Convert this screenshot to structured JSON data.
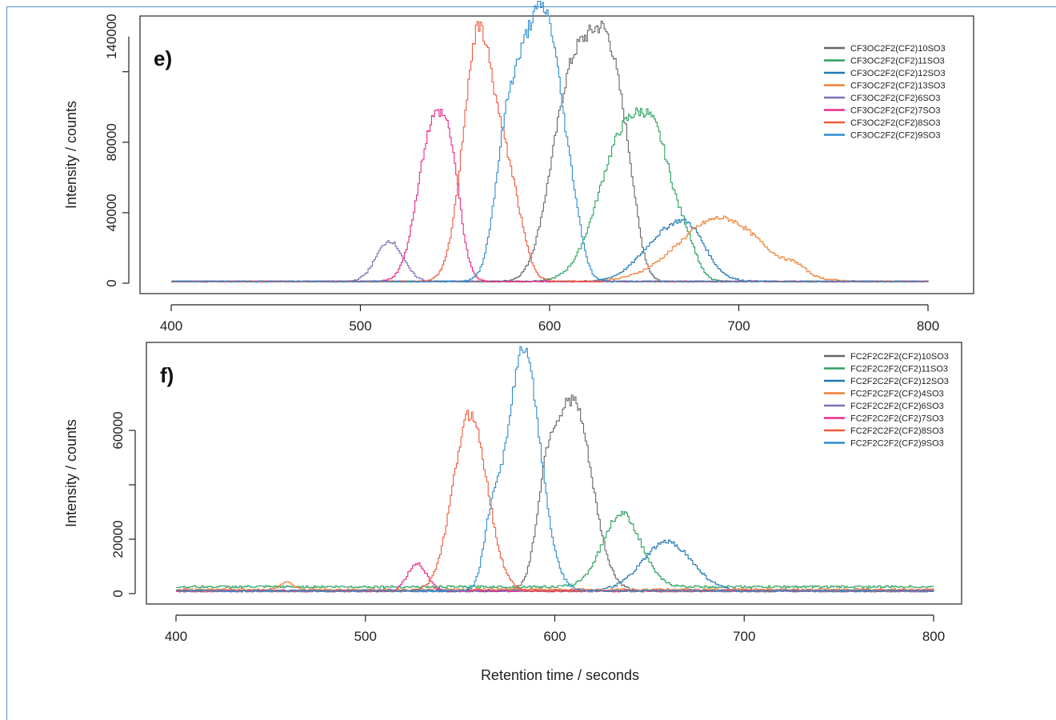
{
  "figure": {
    "xlabel": "Retention time / seconds"
  },
  "chart_data": [
    {
      "type": "line",
      "panel": "e)",
      "ylabel": "Intensity / counts",
      "xlim": [
        400,
        800
      ],
      "ylim": [
        0,
        150000
      ],
      "xticks": [
        400,
        500,
        600,
        700,
        800
      ],
      "yticks": [
        0,
        40000,
        80000,
        140000
      ],
      "grid": false,
      "legend_position": "top-right",
      "legend_order": [
        0,
        1,
        2,
        3,
        4,
        5,
        6,
        7
      ],
      "series": [
        {
          "name": "CF3OC2F2(CF2)10SO3",
          "color": "#666666",
          "peaks": [
            [
              602,
              18000,
              8
            ],
            [
              615,
              120000,
              11
            ],
            [
              632,
              95000,
              8
            ],
            [
              642,
              22000,
              5
            ]
          ],
          "baseline": 1000
        },
        {
          "name": "CF3OC2F2(CF2)11SO3",
          "color": "#2ca25f",
          "peaks": [
            [
              640,
              85000,
              14
            ],
            [
              658,
              45000,
              9
            ],
            [
              673,
              12000,
              5
            ]
          ],
          "baseline": 1000
        },
        {
          "name": "CF3OC2F2(CF2)12SO3",
          "color": "#1f78b4",
          "peaks": [
            [
              663,
              28000,
              14
            ],
            [
              675,
              12000,
              8
            ]
          ],
          "baseline": 1000
        },
        {
          "name": "CF3OC2F2(CF2)13SO3",
          "color": "#f07f32",
          "peaks": [
            [
              690,
              36000,
              22
            ],
            [
              730,
              4000,
              5
            ]
          ],
          "baseline": 1000
        },
        {
          "name": "CF3OC2F2(CF2)6SO3",
          "color": "#7e6fb5",
          "peaks": [
            [
              515,
              23000,
              7
            ]
          ],
          "baseline": 1000
        },
        {
          "name": "CF3OC2F2(CF2)7SO3",
          "color": "#e7298a",
          "peaks": [
            [
              538,
              88000,
              8
            ],
            [
              548,
              38000,
              5
            ]
          ],
          "baseline": 1000
        },
        {
          "name": "CF3OC2F2(CF2)8SO3",
          "color": "#ef5a3c",
          "peaks": [
            [
              562,
              140000,
              8
            ],
            [
              578,
              52000,
              7
            ]
          ],
          "baseline": 1000
        },
        {
          "name": "CF3OC2F2(CF2)9SO3",
          "color": "#2b8ccf",
          "peaks": [
            [
              591,
              138000,
              10
            ],
            [
              576,
              50000,
              6
            ],
            [
              602,
              55000,
              6
            ],
            [
              612,
              30000,
              5
            ]
          ],
          "baseline": 1000
        }
      ]
    },
    {
      "type": "line",
      "panel": "f)",
      "ylabel": "Intensity / counts",
      "xlim": [
        400,
        800
      ],
      "ylim": [
        0,
        90000
      ],
      "xticks": [
        400,
        500,
        600,
        700,
        800
      ],
      "yticks": [
        0,
        20000,
        60000
      ],
      "grid": false,
      "legend_position": "top-right",
      "legend_order": [
        0,
        1,
        2,
        3,
        4,
        5,
        6,
        7
      ],
      "series": [
        {
          "name": "FC2F2C2F2(CF2)10SO3",
          "color": "#666666",
          "peaks": [
            [
              595,
              25000,
              5
            ],
            [
              609,
              70000,
              10
            ]
          ],
          "baseline": 1000
        },
        {
          "name": "FC2F2C2F2(CF2)11SO3",
          "color": "#2ca25f",
          "peaks": [
            [
              635,
              27000,
              10
            ]
          ],
          "baseline": 2500
        },
        {
          "name": "FC2F2C2F2(CF2)12SO3",
          "color": "#1f78b4",
          "peaks": [
            [
              659,
              18000,
              13
            ]
          ],
          "baseline": 1000
        },
        {
          "name": "FC2F2C2F2(CF2)4SO3",
          "color": "#f07f32",
          "peaks": [
            [
              458,
              2500,
              3
            ]
          ],
          "baseline": 1500
        },
        {
          "name": "FC2F2C2F2(CF2)6SO3",
          "color": "#7e6fb5",
          "peaks": [],
          "baseline": 1000
        },
        {
          "name": "FC2F2C2F2(CF2)7SO3",
          "color": "#e7298a",
          "peaks": [
            [
              527,
              10000,
              5
            ]
          ],
          "baseline": 1000
        },
        {
          "name": "FC2F2C2F2(CF2)8SO3",
          "color": "#ef5a3c",
          "peaks": [
            [
              555,
              65000,
              9
            ]
          ],
          "baseline": 1000
        },
        {
          "name": "FC2F2C2F2(CF2)9SO3",
          "color": "#2b8ccf",
          "peaks": [
            [
              583,
              88000,
              9
            ],
            [
              566,
              18000,
              4
            ]
          ],
          "baseline": 1000
        }
      ]
    }
  ]
}
